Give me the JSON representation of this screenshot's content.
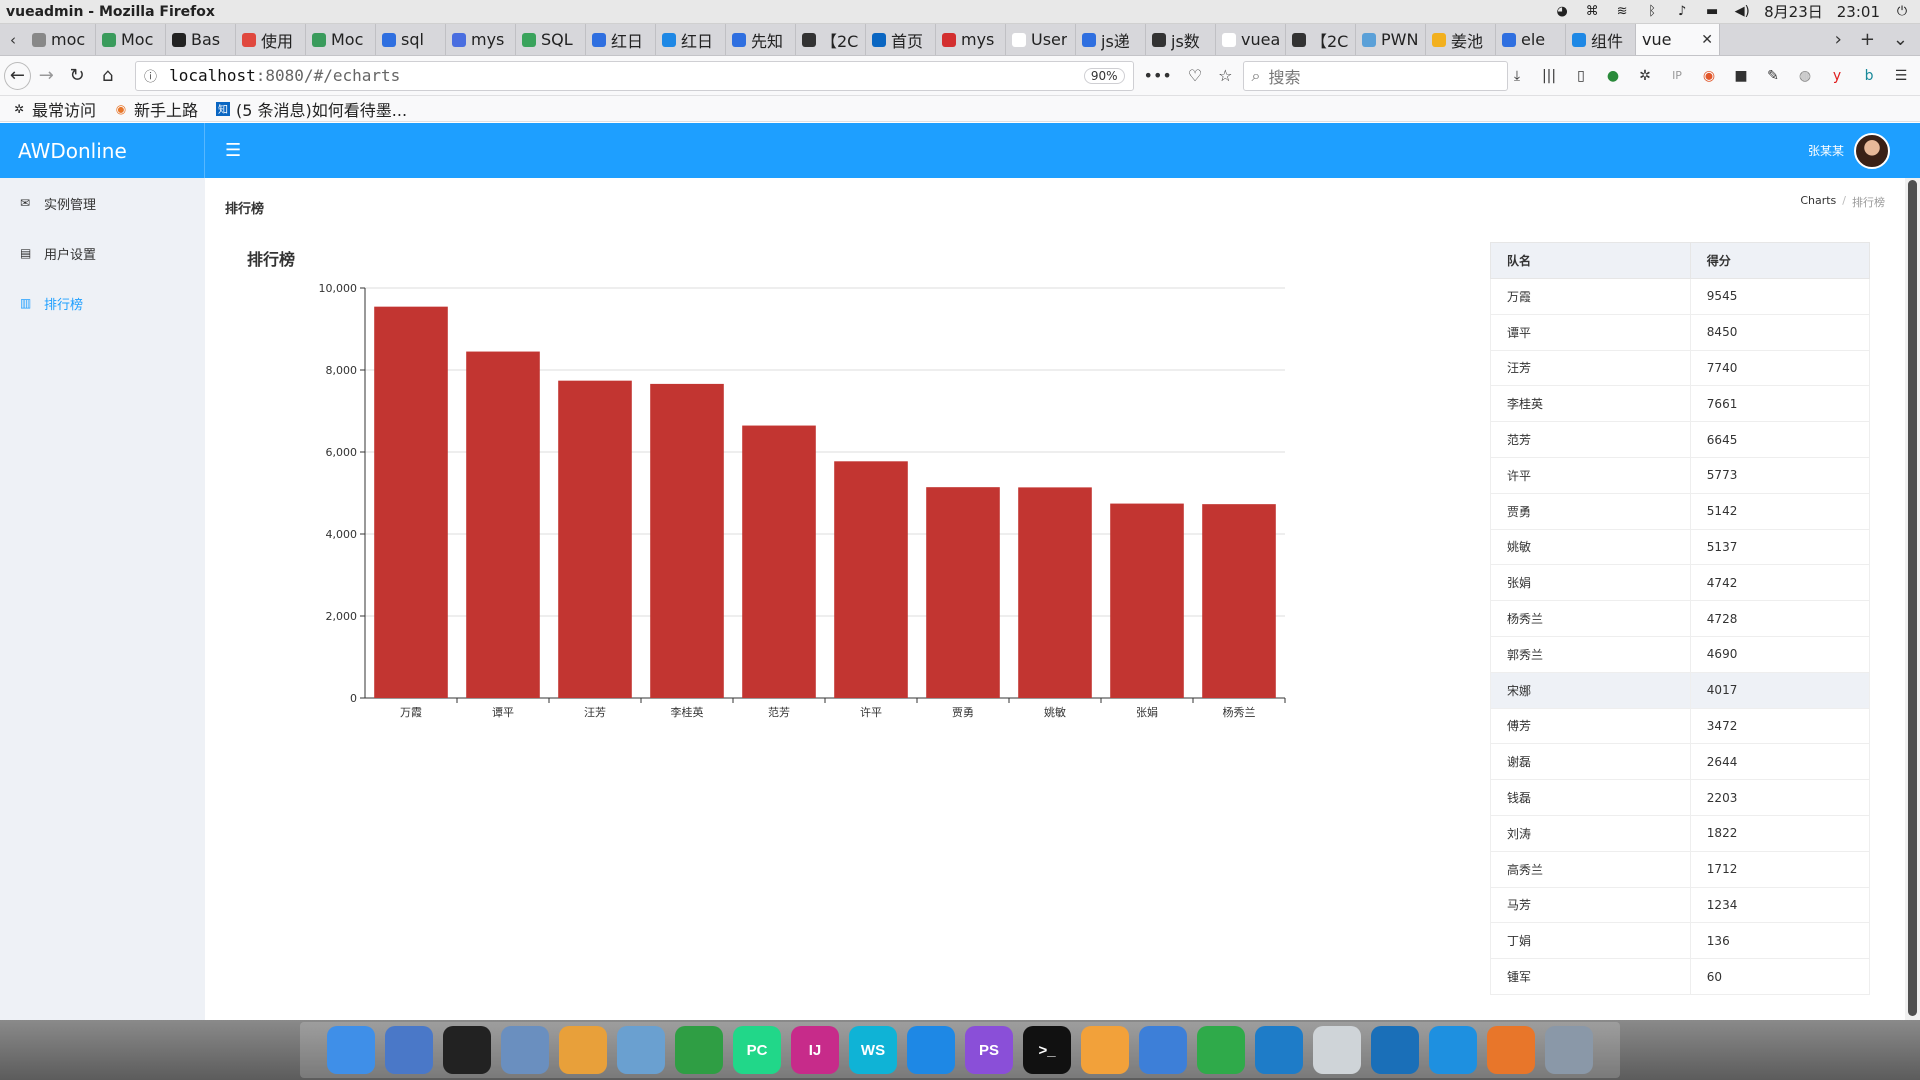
{
  "window": {
    "title": "vueadmin - Mozilla Firefox"
  },
  "os_tray": {
    "date": "8月23日",
    "time": "23:01"
  },
  "tabs": [
    {
      "label": "moc",
      "color": "#888888"
    },
    {
      "label": "Moc",
      "color": "#3a9b5c"
    },
    {
      "label": "Bas",
      "color": "#222222"
    },
    {
      "label": "使用",
      "color": "#e0483e"
    },
    {
      "label": "Moc",
      "color": "#3a9b5c"
    },
    {
      "label": "sql",
      "color": "#2f6fe0"
    },
    {
      "label": "mys",
      "color": "#4a6ee0"
    },
    {
      "label": "SQL",
      "color": "#3aa35c"
    },
    {
      "label": "红日",
      "color": "#2f6fe0"
    },
    {
      "label": "红日",
      "color": "#1e88e5"
    },
    {
      "label": "先知",
      "color": "#2f6fe0"
    },
    {
      "label": "【2C",
      "color": "#333333"
    },
    {
      "label": "首页",
      "color": "#0a66c2"
    },
    {
      "label": "mys",
      "color": "#d32f2f"
    },
    {
      "label": "User",
      "color": "#ffffff"
    },
    {
      "label": "js递",
      "color": "#2f6fe0"
    },
    {
      "label": "js数",
      "color": "#333333"
    },
    {
      "label": "vueadr",
      "color": "#ffffff"
    },
    {
      "label": "【2C",
      "color": "#333333"
    },
    {
      "label": "PWN",
      "color": "#5aa0d8"
    },
    {
      "label": "姜池",
      "color": "#f2b01e"
    },
    {
      "label": "ele",
      "color": "#2f6fe0"
    },
    {
      "label": "组件",
      "color": "#1e88e5"
    }
  ],
  "active_tab": {
    "label": "vue"
  },
  "navbar": {
    "url_host": "localhost",
    "url_rest": ":8080/#/echarts",
    "zoom": "90%",
    "search_placeholder": "搜索"
  },
  "bookmarks": [
    {
      "label": "最常访问",
      "icon": "gear-icon"
    },
    {
      "label": "新手上路",
      "icon": "firefox-icon"
    },
    {
      "label": "(5 条消息)如何看待墨...",
      "icon": "zhihu-icon"
    }
  ],
  "header": {
    "brand": "AWDonline",
    "user_name": "张某某"
  },
  "sidebar": {
    "items": [
      {
        "label": "实例管理",
        "icon": "envelope-icon",
        "active": false
      },
      {
        "label": "用户设置",
        "icon": "id-card-icon",
        "active": false
      },
      {
        "label": "排行榜",
        "icon": "bar-chart-icon",
        "active": true
      }
    ]
  },
  "page": {
    "title": "排行榜",
    "breadcrumb": [
      "Charts",
      "排行榜"
    ],
    "chart_heading": "排行榜"
  },
  "table": {
    "headers": [
      "队名",
      "得分"
    ],
    "highlight_row": 11,
    "rows": [
      [
        "万霞",
        "9545"
      ],
      [
        "谭平",
        "8450"
      ],
      [
        "汪芳",
        "7740"
      ],
      [
        "李桂英",
        "7661"
      ],
      [
        "范芳",
        "6645"
      ],
      [
        "许平",
        "5773"
      ],
      [
        "贾勇",
        "5142"
      ],
      [
        "姚敏",
        "5137"
      ],
      [
        "张娟",
        "4742"
      ],
      [
        "杨秀兰",
        "4728"
      ],
      [
        "郭秀兰",
        "4690"
      ],
      [
        "宋娜",
        "4017"
      ],
      [
        "傅芳",
        "3472"
      ],
      [
        "谢磊",
        "2644"
      ],
      [
        "钱磊",
        "2203"
      ],
      [
        "刘涛",
        "1822"
      ],
      [
        "高秀兰",
        "1712"
      ],
      [
        "马芳",
        "1234"
      ],
      [
        "丁娟",
        "136"
      ],
      [
        "锺军",
        "60"
      ]
    ]
  },
  "chart_data": {
    "type": "bar",
    "title": "",
    "xlabel": "",
    "ylabel": "",
    "categories": [
      "万霞",
      "谭平",
      "汪芳",
      "李桂英",
      "范芳",
      "许平",
      "贾勇",
      "姚敏",
      "张娟",
      "杨秀兰"
    ],
    "values": [
      9545,
      8450,
      7740,
      7661,
      6645,
      5773,
      5142,
      5137,
      4742,
      4728
    ],
    "ylim": [
      0,
      10000
    ],
    "yticks": [
      "0",
      "2,000",
      "4,000",
      "6,000",
      "8,000",
      "10,000"
    ],
    "bar_color": "#c23531",
    "grid": true
  },
  "colors": {
    "primary": "#1e9fff",
    "sidebar_bg": "#eef1f6",
    "bar": "#c23531"
  },
  "dock": [
    {
      "name": "finder-app",
      "color": "#3f8fe8"
    },
    {
      "name": "launchpad-app",
      "color": "#4a78c8"
    },
    {
      "name": "qq-app",
      "color": "#222222"
    },
    {
      "name": "preview-app",
      "color": "#6a8fbf"
    },
    {
      "name": "photos-app",
      "color": "#e8a03a"
    },
    {
      "name": "mail-app",
      "color": "#6aa0d0"
    },
    {
      "name": "chrome-app",
      "color": "#2f9e44"
    },
    {
      "name": "pycharm-app",
      "color": "#21d789",
      "text": "PC"
    },
    {
      "name": "intellij-app",
      "color": "#c72b8a",
      "text": "IJ"
    },
    {
      "name": "webstorm-app",
      "color": "#0fb3d6",
      "text": "WS"
    },
    {
      "name": "appstore-app",
      "color": "#1e88e5"
    },
    {
      "name": "phpstorm-app",
      "color": "#8a4fd8",
      "text": "PS"
    },
    {
      "name": "terminal-app",
      "color": "#111111",
      "text": ">_"
    },
    {
      "name": "pages-app",
      "color": "#f2a13a"
    },
    {
      "name": "keynote-app",
      "color": "#3d7fd8"
    },
    {
      "name": "numbers-app",
      "color": "#2faa4a"
    },
    {
      "name": "vscode-app",
      "color": "#1e7cc8"
    },
    {
      "name": "trash-app",
      "color": "#cfd4d8"
    },
    {
      "name": "quicktime-app",
      "color": "#1a6fb8"
    },
    {
      "name": "windows-app",
      "color": "#1e90e0"
    },
    {
      "name": "firefox-app",
      "color": "#e8762a"
    },
    {
      "name": "remote-desktop-app",
      "color": "#8a98a8"
    }
  ]
}
